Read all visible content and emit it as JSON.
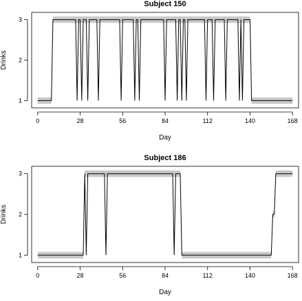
{
  "chart_data": [
    {
      "type": "line",
      "title": "Subject 150",
      "xlabel": "Day",
      "ylabel": "Drinks",
      "xlim": [
        -4,
        172
      ],
      "ylim": [
        0.82,
        3.18
      ],
      "xticks": [
        0,
        28,
        56,
        84,
        112,
        140,
        168
      ],
      "yticks": [
        1,
        2,
        3
      ],
      "grid": false,
      "legend": "none",
      "line_color": "#000000",
      "band_color": "#c8c8c8",
      "band_half_width": 0.08,
      "bands": [
        {
          "x0": 0,
          "x1": 9,
          "y": 1
        },
        {
          "x0": 10,
          "x1": 140,
          "y": 3
        },
        {
          "x0": 141,
          "x1": 168,
          "y": 1
        }
      ],
      "series": [
        {
          "x": [
            0,
            9,
            10,
            25,
            26,
            27,
            28,
            29,
            30,
            32,
            33,
            34,
            39,
            40,
            41,
            54,
            55,
            56,
            63,
            64,
            65,
            66,
            67,
            68,
            83,
            84,
            85,
            91,
            92,
            93,
            94,
            95,
            96,
            97,
            98,
            99,
            110,
            111,
            112,
            115,
            116,
            117,
            123,
            124,
            125,
            132,
            133,
            134,
            135,
            136,
            140,
            141,
            168
          ],
          "y": [
            1,
            1,
            3,
            3,
            1,
            3,
            3,
            1,
            3,
            3,
            1,
            3,
            3,
            1,
            3,
            3,
            1,
            3,
            3,
            1,
            3,
            3,
            1,
            3,
            3,
            1,
            3,
            3,
            1,
            3,
            3,
            1,
            3,
            3,
            1,
            3,
            3,
            1,
            3,
            3,
            1,
            3,
            3,
            1,
            3,
            3,
            1,
            3,
            1,
            3,
            3,
            1,
            1
          ]
        }
      ]
    },
    {
      "type": "line",
      "title": "Subject 186",
      "xlabel": "Day",
      "ylabel": "Drinks",
      "xlim": [
        -4,
        172
      ],
      "ylim": [
        0.82,
        3.18
      ],
      "xticks": [
        0,
        28,
        56,
        84,
        112,
        140,
        168
      ],
      "yticks": [
        1,
        2,
        3
      ],
      "grid": false,
      "legend": "none",
      "line_color": "#000000",
      "band_color": "#c8c8c8",
      "band_half_width": 0.08,
      "bands": [
        {
          "x0": 0,
          "x1": 30,
          "y": 1
        },
        {
          "x0": 31,
          "x1": 94,
          "y": 3
        },
        {
          "x0": 95,
          "x1": 154,
          "y": 1
        },
        {
          "x0": 155,
          "x1": 156,
          "y": 2
        },
        {
          "x0": 157,
          "x1": 168,
          "y": 3
        }
      ],
      "series": [
        {
          "x": [
            0,
            30,
            31,
            32,
            33,
            44,
            45,
            46,
            89,
            90,
            91,
            94,
            95,
            154,
            155,
            156,
            157,
            168
          ],
          "y": [
            1,
            1,
            3,
            1,
            3,
            3,
            1,
            3,
            3,
            1,
            3,
            3,
            1,
            1,
            2,
            2,
            3,
            3
          ]
        }
      ]
    }
  ]
}
